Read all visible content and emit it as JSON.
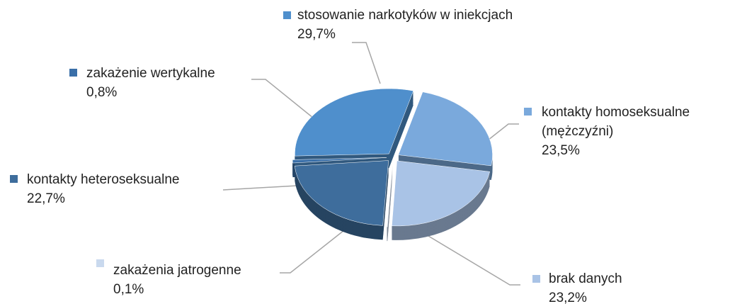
{
  "chart_data": {
    "type": "pie",
    "categories": [
      "kontakty homoseksualne (mężczyźni)",
      "brak danych",
      "zakażenia jatrogenne",
      "kontakty heteroseksualne",
      "zakażenie wertykalne",
      "stosowanie narkotyków w iniekcjach"
    ],
    "values": [
      23.5,
      23.2,
      0.1,
      22.7,
      0.8,
      29.7
    ],
    "value_labels": [
      "23,5%",
      "23,2%",
      "0,1%",
      "22,7%",
      "0,8%",
      "29,7%"
    ],
    "colors": [
      "#7aa9dc",
      "#a9c3e6",
      "#c9d9ee",
      "#3e6d9c",
      "#3a6fa8",
      "#4f8fcc"
    ]
  }
}
